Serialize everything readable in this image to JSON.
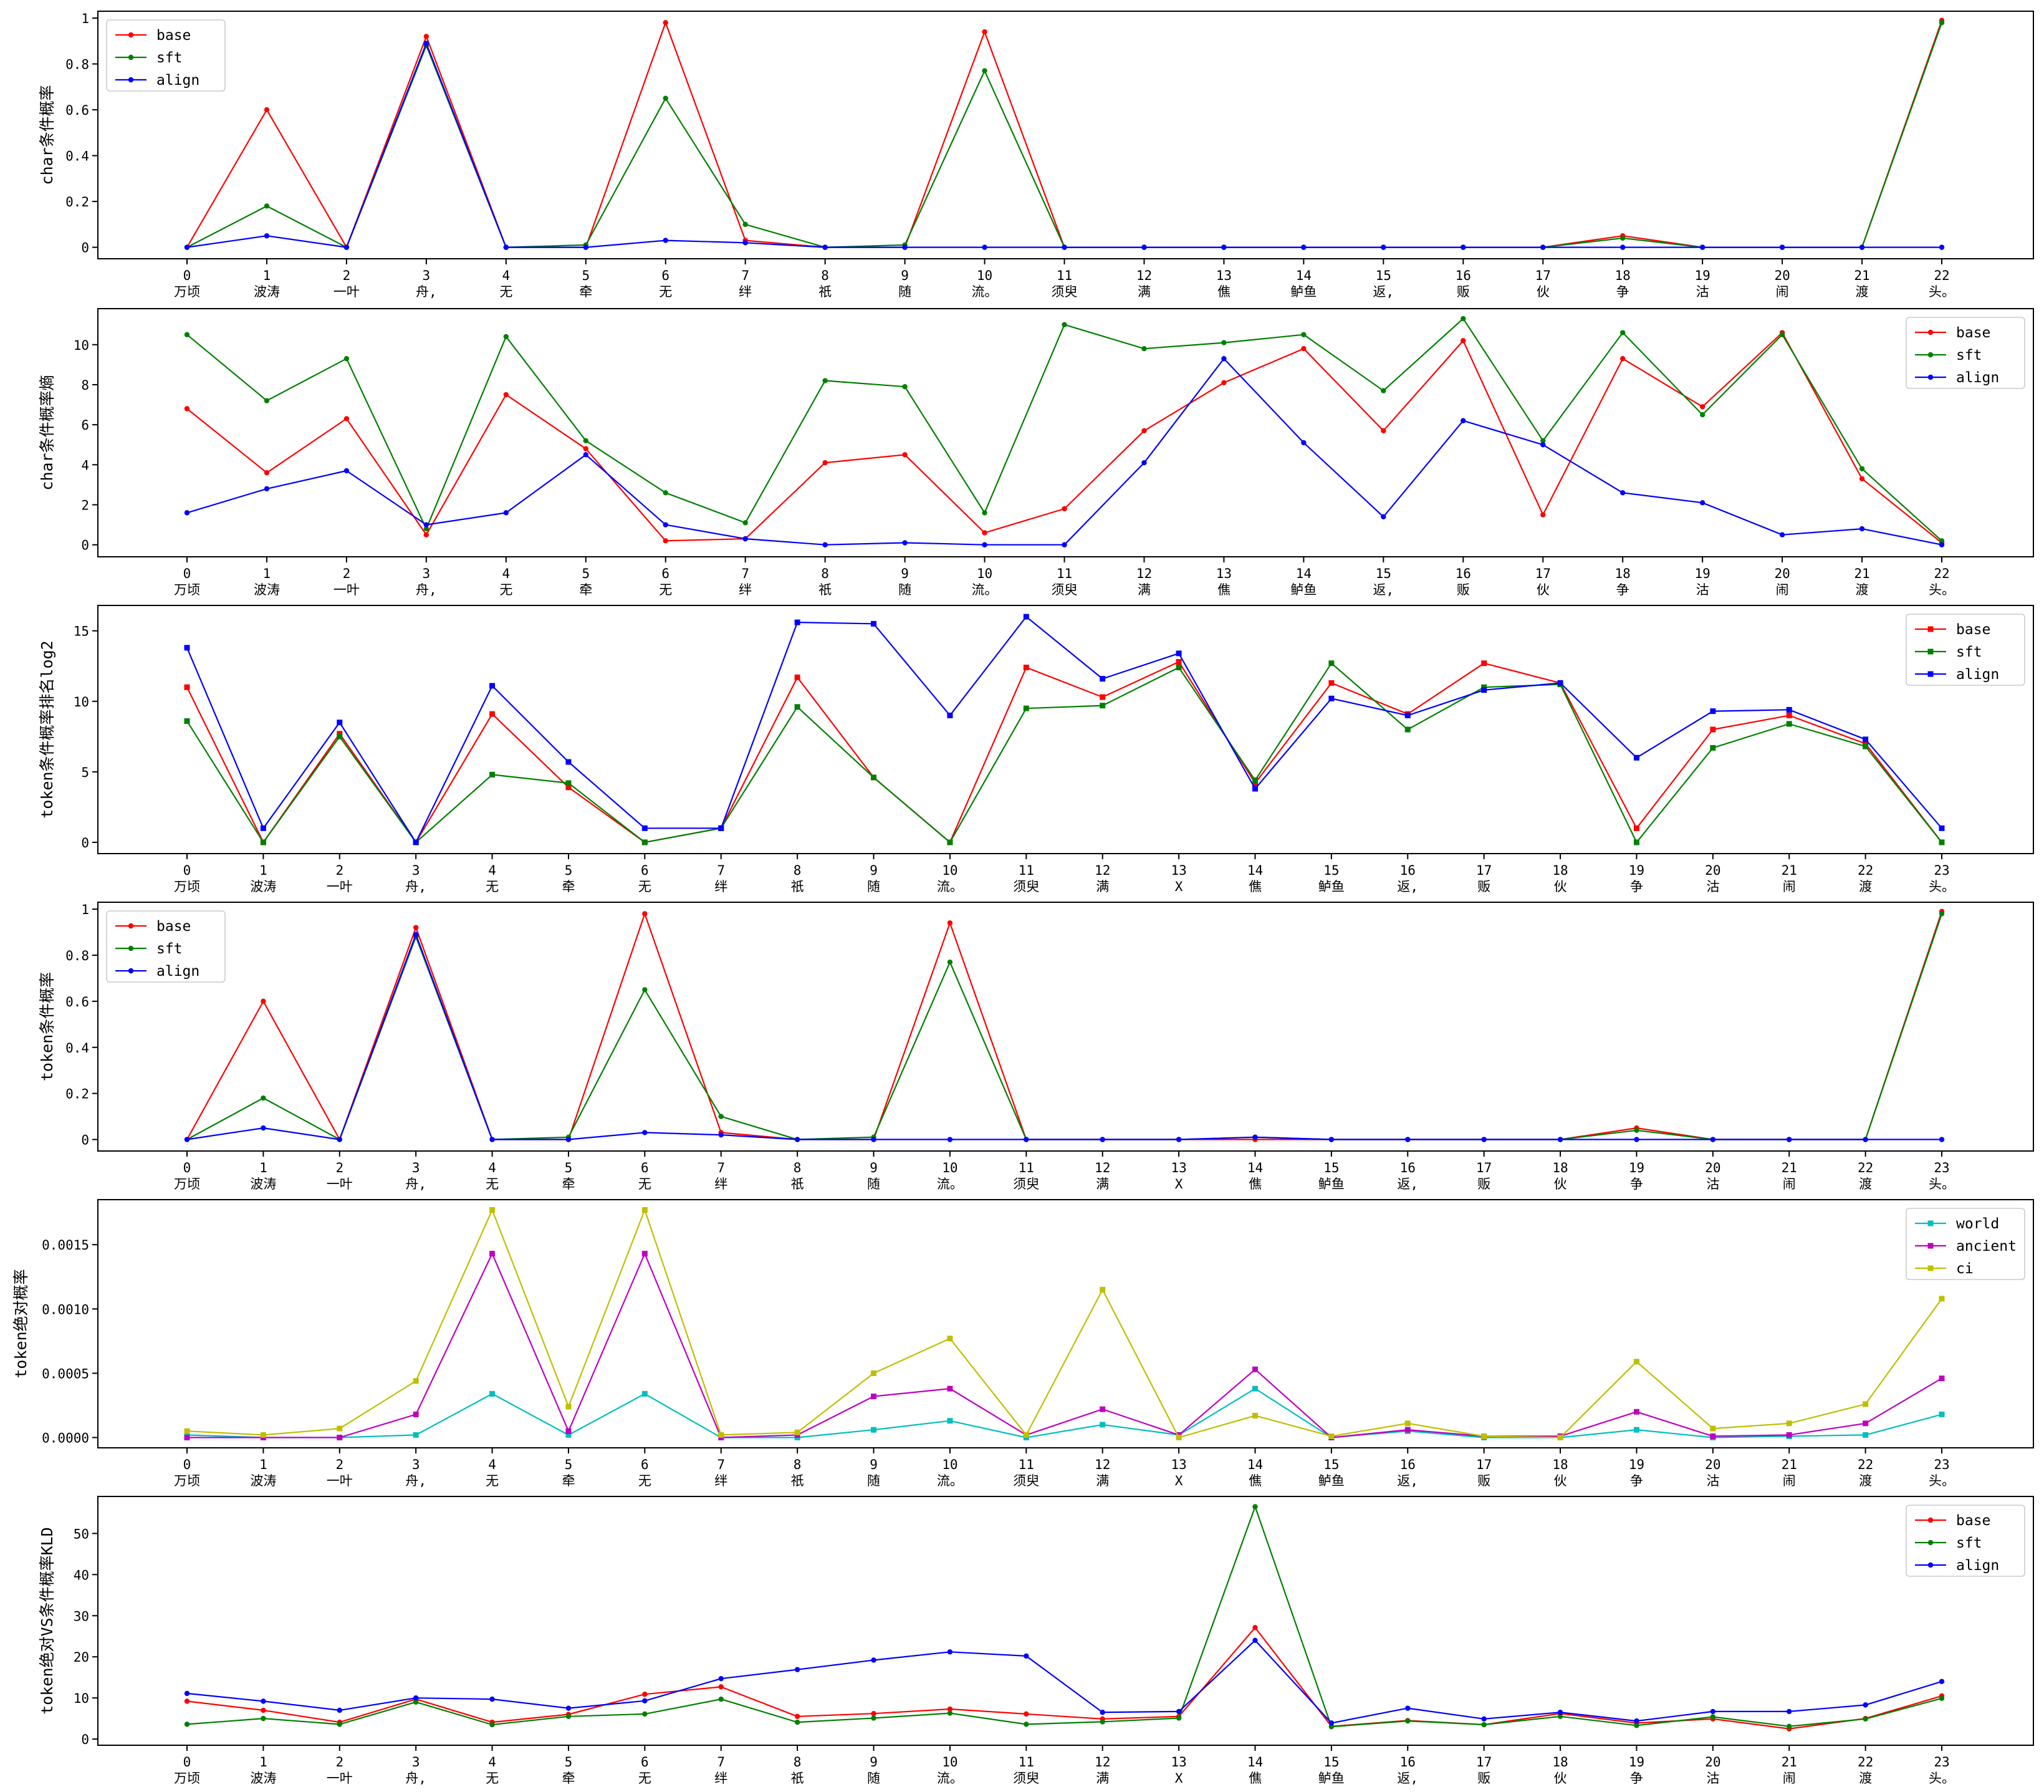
{
  "chart_data": [
    {
      "type": "line",
      "ylabel": "char条件概率",
      "x": [
        0,
        1,
        2,
        3,
        4,
        5,
        6,
        7,
        8,
        9,
        10,
        11,
        12,
        13,
        14,
        15,
        16,
        17,
        18,
        19,
        20,
        21,
        22
      ],
      "categories": [
        "万顷",
        "波涛",
        "一叶",
        "舟,",
        "无",
        "牵",
        "无",
        "绊",
        "祇",
        "随",
        "流。",
        "须臾",
        "满",
        "僬",
        "鲈鱼",
        "返,",
        "贩",
        "伙",
        "争",
        "沽",
        "闹",
        "渡",
        "头。"
      ],
      "yticks": [
        0.0,
        0.2,
        0.4,
        0.6,
        0.8,
        1.0
      ],
      "ylim": [
        -0.05,
        1.03
      ],
      "legend": "top-left",
      "marker": "dot",
      "series": [
        {
          "name": "base",
          "color": "#ff0000",
          "values": [
            0.0,
            0.6,
            0.0,
            0.92,
            0.0,
            0.0,
            0.98,
            0.03,
            0.0,
            0.0,
            0.94,
            0.0,
            0.0,
            0.0,
            0.0,
            0.0,
            0.0,
            0.0,
            0.05,
            0.0,
            0.0,
            0.0,
            0.99
          ]
        },
        {
          "name": "sft",
          "color": "#008000",
          "values": [
            0.0,
            0.18,
            0.0,
            0.88,
            0.0,
            0.01,
            0.65,
            0.1,
            0.0,
            0.01,
            0.77,
            0.0,
            0.0,
            0.0,
            0.0,
            0.0,
            0.0,
            0.0,
            0.04,
            0.0,
            0.0,
            0.0,
            0.98
          ]
        },
        {
          "name": "align",
          "color": "#0000ff",
          "values": [
            0.0,
            0.05,
            0.0,
            0.89,
            0.0,
            0.0,
            0.03,
            0.02,
            0.0,
            0.0,
            0.0,
            0.0,
            0.0,
            0.0,
            0.0,
            0.0,
            0.0,
            0.0,
            0.0,
            0.0,
            0.0,
            0.0,
            0.0
          ]
        }
      ]
    },
    {
      "type": "line",
      "ylabel": "char条件概率熵",
      "x": [
        0,
        1,
        2,
        3,
        4,
        5,
        6,
        7,
        8,
        9,
        10,
        11,
        12,
        13,
        14,
        15,
        16,
        17,
        18,
        19,
        20,
        21,
        22
      ],
      "categories": [
        "万顷",
        "波涛",
        "一叶",
        "舟,",
        "无",
        "牵",
        "无",
        "绊",
        "祇",
        "随",
        "流。",
        "须臾",
        "满",
        "僬",
        "鲈鱼",
        "返,",
        "贩",
        "伙",
        "争",
        "沽",
        "闹",
        "渡",
        "头。"
      ],
      "yticks": [
        0,
        2,
        4,
        6,
        8,
        10
      ],
      "ylim": [
        -0.6,
        11.8
      ],
      "legend": "top-right",
      "marker": "dot",
      "series": [
        {
          "name": "base",
          "color": "#ff0000",
          "values": [
            6.8,
            3.6,
            6.3,
            0.5,
            7.5,
            4.8,
            0.2,
            0.3,
            4.1,
            4.5,
            0.6,
            1.8,
            5.7,
            8.1,
            9.8,
            5.7,
            10.2,
            1.5,
            9.3,
            6.9,
            10.6,
            3.3,
            0.1
          ]
        },
        {
          "name": "sft",
          "color": "#008000",
          "values": [
            10.5,
            7.2,
            9.3,
            0.8,
            10.4,
            5.2,
            2.6,
            1.1,
            8.2,
            7.9,
            1.6,
            11.0,
            9.8,
            10.1,
            10.5,
            7.7,
            11.3,
            5.2,
            10.6,
            6.5,
            10.5,
            3.8,
            0.2
          ]
        },
        {
          "name": "align",
          "color": "#0000ff",
          "values": [
            1.6,
            2.8,
            3.7,
            1.0,
            1.6,
            4.5,
            1.0,
            0.3,
            0.0,
            0.1,
            0.0,
            0.0,
            4.1,
            9.3,
            5.1,
            1.4,
            6.2,
            5.0,
            2.6,
            2.1,
            0.5,
            0.8,
            0.0
          ]
        }
      ]
    },
    {
      "type": "line",
      "ylabel": "token条件概率排名log2",
      "x": [
        0,
        1,
        2,
        3,
        4,
        5,
        6,
        7,
        8,
        9,
        10,
        11,
        12,
        13,
        14,
        15,
        16,
        17,
        18,
        19,
        20,
        21,
        22,
        23
      ],
      "categories": [
        "万顷",
        "波涛",
        "一叶",
        "舟,",
        "无",
        "牵",
        "无",
        "绊",
        "祇",
        "随",
        "流。",
        "须臾",
        "满",
        "X",
        "僬",
        "鲈鱼",
        "返,",
        "贩",
        "伙",
        "争",
        "沽",
        "闹",
        "渡",
        "头。"
      ],
      "yticks": [
        0,
        5,
        10,
        15
      ],
      "ylim": [
        -0.8,
        16.8
      ],
      "legend": "top-right",
      "marker": "square",
      "series": [
        {
          "name": "base",
          "color": "#ff0000",
          "values": [
            11.0,
            0.0,
            7.7,
            0.0,
            9.1,
            3.9,
            0.0,
            1.0,
            11.7,
            4.6,
            0.0,
            12.4,
            10.3,
            12.8,
            4.2,
            11.3,
            9.1,
            12.7,
            11.3,
            1.0,
            8.0,
            9.0,
            7.0,
            0.0
          ]
        },
        {
          "name": "sft",
          "color": "#008000",
          "values": [
            8.6,
            0.0,
            7.5,
            0.0,
            4.8,
            4.2,
            0.0,
            1.0,
            9.6,
            4.6,
            0.0,
            9.5,
            9.7,
            12.4,
            4.4,
            12.7,
            8.0,
            11.0,
            11.2,
            0.0,
            6.7,
            8.4,
            6.8,
            0.0
          ]
        },
        {
          "name": "align",
          "color": "#0000ff",
          "values": [
            13.8,
            1.0,
            8.5,
            0.0,
            11.1,
            5.7,
            1.0,
            1.0,
            15.6,
            15.5,
            9.0,
            16.0,
            11.6,
            13.4,
            3.8,
            10.2,
            9.0,
            10.8,
            11.3,
            6.0,
            9.3,
            9.4,
            7.3,
            1.0
          ]
        }
      ]
    },
    {
      "type": "line",
      "ylabel": "token条件概率",
      "x": [
        0,
        1,
        2,
        3,
        4,
        5,
        6,
        7,
        8,
        9,
        10,
        11,
        12,
        13,
        14,
        15,
        16,
        17,
        18,
        19,
        20,
        21,
        22,
        23
      ],
      "categories": [
        "万顷",
        "波涛",
        "一叶",
        "舟,",
        "无",
        "牵",
        "无",
        "绊",
        "祇",
        "随",
        "流。",
        "须臾",
        "满",
        "X",
        "僬",
        "鲈鱼",
        "返,",
        "贩",
        "伙",
        "争",
        "沽",
        "闹",
        "渡",
        "头。"
      ],
      "yticks": [
        0.0,
        0.2,
        0.4,
        0.6,
        0.8,
        1.0
      ],
      "ylim": [
        -0.05,
        1.03
      ],
      "legend": "top-left",
      "marker": "dot",
      "series": [
        {
          "name": "base",
          "color": "#ff0000",
          "values": [
            0.0,
            0.6,
            0.0,
            0.92,
            0.0,
            0.0,
            0.98,
            0.03,
            0.0,
            0.0,
            0.94,
            0.0,
            0.0,
            0.0,
            0.0,
            0.0,
            0.0,
            0.0,
            0.0,
            0.05,
            0.0,
            0.0,
            0.0,
            0.99
          ]
        },
        {
          "name": "sft",
          "color": "#008000",
          "values": [
            0.0,
            0.18,
            0.0,
            0.88,
            0.0,
            0.01,
            0.65,
            0.1,
            0.0,
            0.01,
            0.77,
            0.0,
            0.0,
            0.0,
            0.01,
            0.0,
            0.0,
            0.0,
            0.0,
            0.04,
            0.0,
            0.0,
            0.0,
            0.98
          ]
        },
        {
          "name": "align",
          "color": "#0000ff",
          "values": [
            0.0,
            0.05,
            0.0,
            0.89,
            0.0,
            0.0,
            0.03,
            0.02,
            0.0,
            0.0,
            0.0,
            0.0,
            0.0,
            0.0,
            0.01,
            0.0,
            0.0,
            0.0,
            0.0,
            0.0,
            0.0,
            0.0,
            0.0,
            0.0
          ]
        }
      ]
    },
    {
      "type": "line",
      "ylabel": "token绝对概率",
      "x": [
        0,
        1,
        2,
        3,
        4,
        5,
        6,
        7,
        8,
        9,
        10,
        11,
        12,
        13,
        14,
        15,
        16,
        17,
        18,
        19,
        20,
        21,
        22,
        23
      ],
      "categories": [
        "万顷",
        "波涛",
        "一叶",
        "舟,",
        "无",
        "牵",
        "无",
        "绊",
        "祇",
        "随",
        "流。",
        "须臾",
        "满",
        "X",
        "僬",
        "鲈鱼",
        "返,",
        "贩",
        "伙",
        "争",
        "沽",
        "闹",
        "渡",
        "头。"
      ],
      "yticks": [
        0.0,
        0.0005,
        0.001,
        0.0015
      ],
      "ytick_labels": [
        "0.0000",
        "0.0005",
        "0.0010",
        "0.0015"
      ],
      "ylim": [
        -8e-05,
        0.00185
      ],
      "legend": "top-right",
      "marker": "square",
      "series": [
        {
          "name": "world",
          "color": "#00bfbf",
          "values": [
            2e-05,
            0.0,
            0.0,
            2e-05,
            0.00034,
            2e-05,
            0.00034,
            0.0,
            0.0,
            6e-05,
            0.00013,
            0.0,
            0.0001,
            2e-05,
            0.00038,
            0.0,
            5e-05,
            0.0,
            0.0,
            6e-05,
            0.0,
            1e-05,
            2e-05,
            0.00018
          ]
        },
        {
          "name": "ancient",
          "color": "#bf00bf",
          "values": [
            0.0,
            0.0,
            0.0,
            0.00018,
            0.00143,
            5e-05,
            0.00143,
            0.0,
            2e-05,
            0.00032,
            0.00038,
            2e-05,
            0.00022,
            2e-05,
            0.00053,
            0.0,
            6e-05,
            1e-05,
            1e-05,
            0.0002,
            1e-05,
            2e-05,
            0.00011,
            0.00046
          ]
        },
        {
          "name": "ci",
          "color": "#bfbf00",
          "values": [
            5e-05,
            2e-05,
            7e-05,
            0.00044,
            0.00177,
            0.00024,
            0.00177,
            2e-05,
            4e-05,
            0.0005,
            0.00077,
            2e-05,
            0.00115,
            0.0,
            0.00017,
            1e-05,
            0.00011,
            1e-05,
            0.0,
            0.00059,
            7e-05,
            0.00011,
            0.00026,
            0.00108
          ]
        }
      ]
    },
    {
      "type": "line",
      "ylabel": "token绝对VS条件概率KLD",
      "x": [
        0,
        1,
        2,
        3,
        4,
        5,
        6,
        7,
        8,
        9,
        10,
        11,
        12,
        13,
        14,
        15,
        16,
        17,
        18,
        19,
        20,
        21,
        22,
        23
      ],
      "categories": [
        "万顷",
        "波涛",
        "一叶",
        "舟,",
        "无",
        "牵",
        "无",
        "绊",
        "祇",
        "随",
        "流。",
        "须臾",
        "满",
        "X",
        "僬",
        "鲈鱼",
        "返,",
        "贩",
        "伙",
        "争",
        "沽",
        "闹",
        "渡",
        "头。"
      ],
      "yticks": [
        0,
        10,
        20,
        30,
        40,
        50
      ],
      "ylim": [
        -1.5,
        59
      ],
      "legend": "top-right",
      "marker": "dot",
      "series": [
        {
          "name": "base",
          "color": "#ff0000",
          "values": [
            9.2,
            7.0,
            4.1,
            9.7,
            4.1,
            6.0,
            10.9,
            12.7,
            5.5,
            6.2,
            7.3,
            6.1,
            4.9,
            5.5,
            27.1,
            3.1,
            4.5,
            3.5,
            6.2,
            3.9,
            4.9,
            2.5,
            5.0,
            10.5
          ]
        },
        {
          "name": "sft",
          "color": "#008000",
          "values": [
            3.6,
            5.0,
            3.6,
            9.0,
            3.5,
            5.5,
            6.1,
            9.7,
            4.1,
            5.1,
            6.3,
            3.6,
            4.2,
            5.1,
            56.5,
            3.0,
            4.4,
            3.5,
            5.5,
            3.3,
            5.4,
            3.1,
            4.9,
            9.9
          ]
        },
        {
          "name": "align",
          "color": "#0000ff",
          "values": [
            11.1,
            9.2,
            7.0,
            10.0,
            9.7,
            7.5,
            9.3,
            14.7,
            16.9,
            19.2,
            21.2,
            20.2,
            6.5,
            6.7,
            24.0,
            3.9,
            7.5,
            4.9,
            6.5,
            4.4,
            6.7,
            6.7,
            8.3,
            14.0
          ]
        }
      ]
    }
  ]
}
